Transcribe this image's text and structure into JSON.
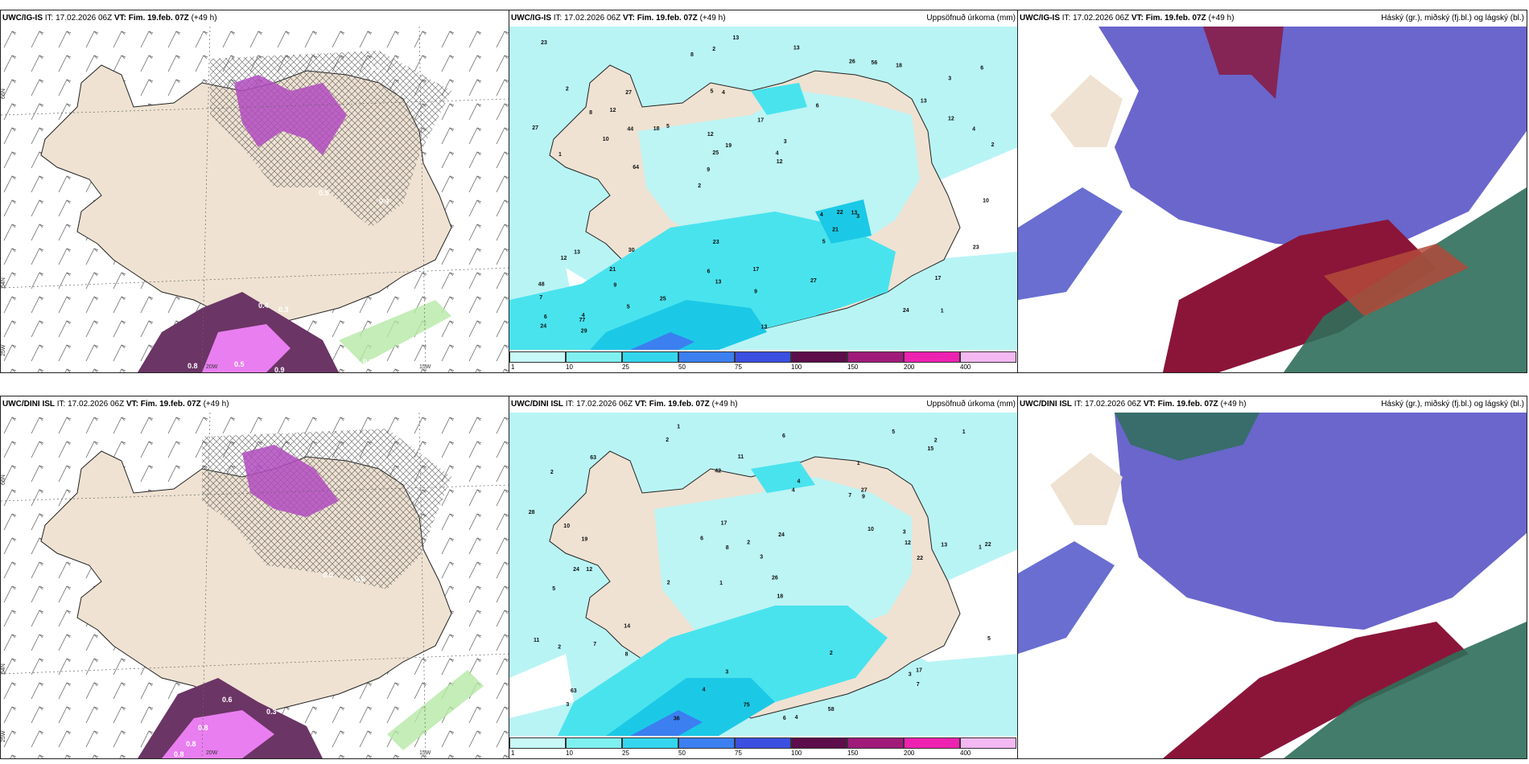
{
  "rows": [
    {
      "model": "UWC/IG-IS",
      "it_label": "IT:",
      "it_value": "17.02.2026 06Z",
      "vt_label": "VT:",
      "vt_value": "Fim. 19.feb. 07Z",
      "lead": "(+49 h)",
      "precip_title": "Uppsöfnuð úrkoma (mm)",
      "cloud_title": "Háský (gr.), miðský (fj.bl.) og lágský (bl.)",
      "lat_labels": [
        "66N",
        "64N",
        "25W"
      ],
      "lon_labels": [
        "20W",
        "15W"
      ],
      "snow_values": [
        "1",
        "0.5",
        "0.4",
        "0.3",
        "0.5",
        "0.4",
        "0.3",
        "0.8",
        "0.5",
        "0.9",
        "0.3",
        "0.4",
        "0.4",
        "0.5"
      ],
      "precip_values": [
        "1",
        "1",
        "3",
        "2",
        "6",
        "4",
        "5",
        "17",
        "13",
        "5",
        "7",
        "9",
        "4",
        "3",
        "3",
        "2",
        "2",
        "2",
        "4",
        "12",
        "9",
        "6",
        "25",
        "27",
        "26",
        "30",
        "24",
        "17",
        "13",
        "13",
        "18",
        "10",
        "5",
        "5",
        "4",
        "4",
        "6",
        "13",
        "12",
        "12",
        "13",
        "6",
        "21",
        "27",
        "21",
        "29",
        "24",
        "17",
        "18",
        "13",
        "64",
        "27",
        "12",
        "56",
        "77",
        "13",
        "8",
        "19",
        "23",
        "23",
        "25",
        "22",
        "44",
        "48",
        "23",
        "8",
        "10",
        "12",
        "9"
      ]
    },
    {
      "model": "UWC/DINI ISL",
      "it_label": "IT:",
      "it_value": "17.02.2026 06Z",
      "vt_label": "VT:",
      "vt_value": "Fim. 19.feb. 07Z",
      "lead": "(+49 h)",
      "precip_title": "Uppsöfnuð úrkoma (mm)",
      "cloud_title": "Háský (gr.), miðský (fj.bl.) og lágský (bl.)",
      "lat_labels": [
        "66N",
        "64N",
        "25W"
      ],
      "lon_labels": [
        "20W",
        "15W"
      ],
      "snow_values": [
        "0.3",
        "0.4",
        "0.5",
        "0.6",
        "0.6",
        "0.3",
        "0.8",
        "0.8",
        "0.8",
        "0.3",
        "0.4",
        "0.5",
        "0.3",
        "0.6"
      ],
      "precip_values": [
        "1",
        "1",
        "1",
        "1",
        "18",
        "12",
        "2",
        "7",
        "5",
        "4",
        "3",
        "3",
        "2",
        "2",
        "6",
        "4",
        "3",
        "5",
        "10",
        "14",
        "19",
        "24",
        "22",
        "13",
        "11",
        "10",
        "8",
        "12",
        "17",
        "2",
        "3",
        "4",
        "7",
        "6",
        "2",
        "5",
        "3",
        "4",
        "1",
        "11",
        "63",
        "36",
        "58",
        "63",
        "75",
        "9",
        "7",
        "27",
        "28",
        "26",
        "42",
        "22",
        "24",
        "15",
        "6",
        "8",
        "17",
        "2",
        "2"
      ]
    }
  ],
  "colorbar": {
    "ticks": [
      "1",
      "10",
      "25",
      "50",
      "75",
      "100",
      "150",
      "200",
      "400"
    ],
    "colors": [
      "#c8f8f8",
      "#7ff0f0",
      "#33d6ee",
      "#3b7ff0",
      "#3b4fe0",
      "#5c0d4a",
      "#a01a7a",
      "#ee22b0",
      "#f4b8f2"
    ]
  },
  "colors": {
    "land": "#efe2d2",
    "sea": "#ffffff",
    "precip_light": "#b9f4f5",
    "precip_mid": "#49e3ee",
    "precip_strong": "#1bc9e6",
    "snow_dark": "#6b3565",
    "snow_mid": "#b24cbf",
    "snow_light": "#e97ef0",
    "high_cloud": "#6a66cc",
    "mid_cloud": "#8b1538",
    "low_cloud": "#2f6e5a"
  }
}
